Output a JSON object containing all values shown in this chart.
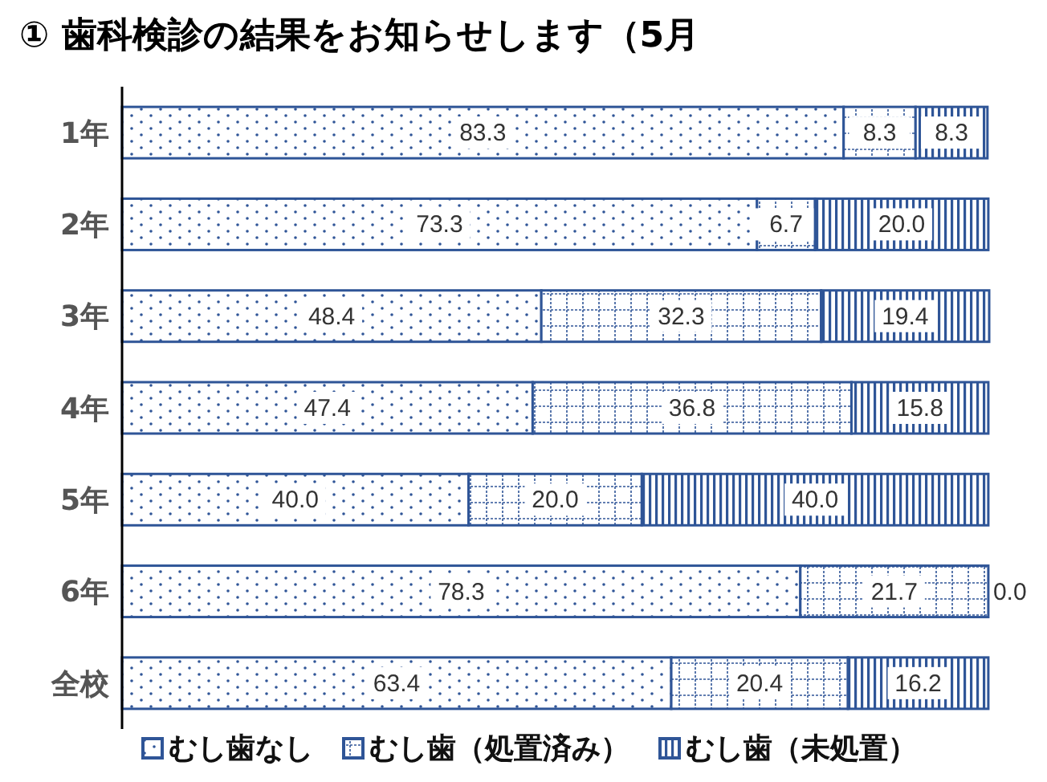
{
  "chart_data": {
    "type": "bar",
    "orientation": "horizontal",
    "stacked": true,
    "title": "① 歯科検診の結果をお知らせします（5月",
    "categories": [
      "1年",
      "2年",
      "3年",
      "4年",
      "5年",
      "6年",
      "全校"
    ],
    "series": [
      {
        "name": "むし歯なし",
        "color": "#2f5597",
        "values": [
          83.3,
          73.3,
          48.4,
          47.4,
          40,
          78.3,
          63.4
        ],
        "value_labels": [
          "83.3",
          "73.3",
          "48.4",
          "47.4",
          "40.0",
          "78.3",
          "63.4"
        ]
      },
      {
        "name": "むし歯（処置済み）",
        "color": "#2f5597",
        "values": [
          8.3,
          6.7,
          32.3,
          36.8,
          20,
          21.7,
          20.4
        ],
        "value_labels": [
          "8.3",
          "6.7",
          "32.3",
          "36.8",
          "20.0",
          "21.7",
          "20.4"
        ]
      },
      {
        "name": "むし歯（未処置）",
        "color": "#2f5597",
        "values": [
          8.3,
          20,
          19.4,
          15.8,
          40,
          0,
          16.2
        ],
        "value_labels": [
          "8.3",
          "20.0",
          "19.4",
          "15.8",
          "40.0",
          "0.0",
          "16.2"
        ]
      }
    ],
    "legend": "bottom"
  }
}
